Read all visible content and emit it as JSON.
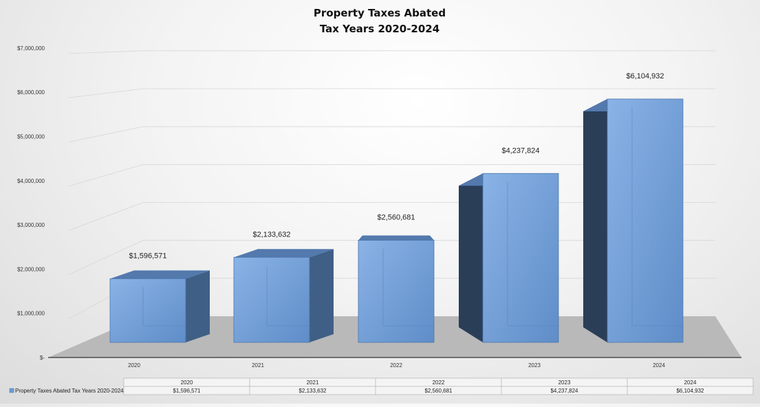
{
  "chart_data": {
    "type": "bar",
    "title": [
      "Property Taxes Abated",
      "Tax Years 2020-2024"
    ],
    "categories": [
      "2020",
      "2021",
      "2022",
      "2023",
      "2024"
    ],
    "series": [
      {
        "name": "Property Taxes Abated Tax Years 2020-2024",
        "values": [
          1596571,
          2133632,
          2560681,
          4237824,
          6104932
        ],
        "labels": [
          "$1,596,571",
          "$2,133,632",
          "$2,560,681",
          "$4,237,824",
          "$6,104,932"
        ]
      }
    ],
    "y_ticks": [
      "$-",
      "$1,000,000",
      "$2,000,000",
      "$3,000,000",
      "$4,000,000",
      "$5,000,000",
      "$6,000,000",
      "$7,000,000"
    ],
    "ylim": [
      0,
      7000000
    ],
    "grid": true,
    "style": "3d-column",
    "data_table": true,
    "colors": {
      "bar_front": "#6d9ad4",
      "bar_side": "#3f5f86",
      "bar_side_dark": "#2b3e58",
      "bar_top": "#5379ad",
      "floor": "#b9b9b9",
      "gridline": "#d6d6d6"
    }
  }
}
